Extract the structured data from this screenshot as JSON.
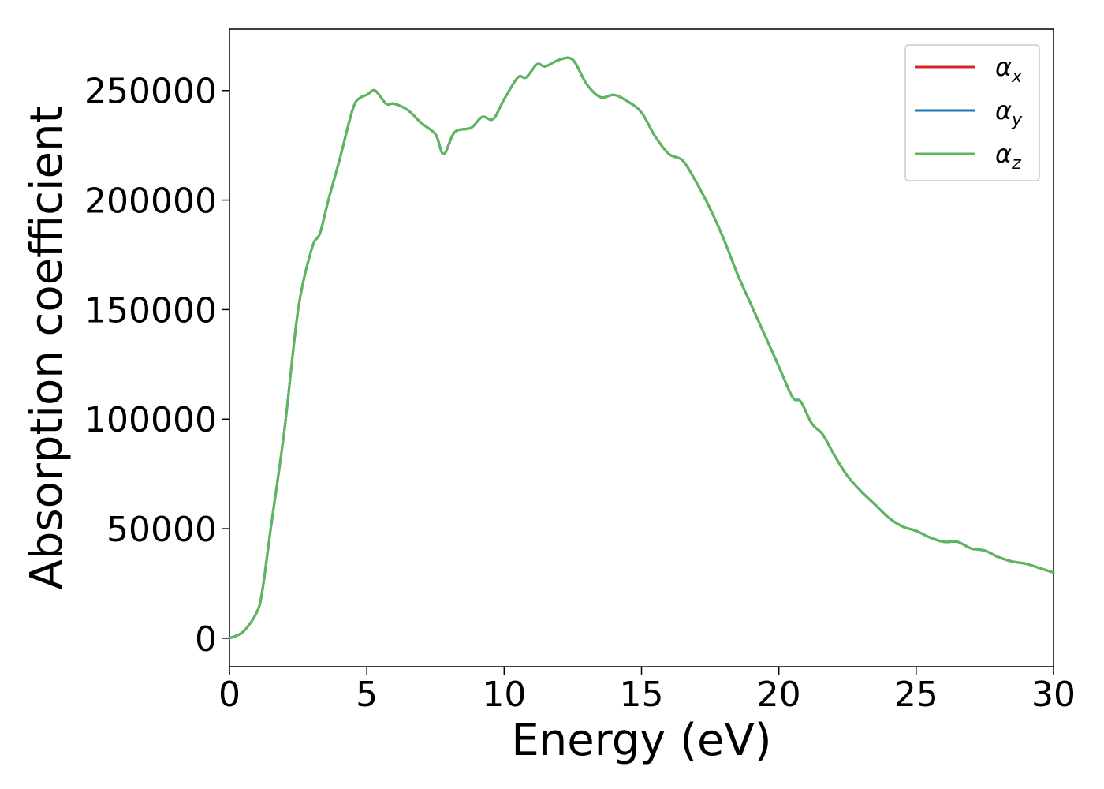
{
  "chart_data": {
    "type": "line",
    "title": "",
    "xlabel": "Energy (eV)",
    "ylabel": "Absorption coefficient",
    "xlim": [
      0,
      30
    ],
    "ylim": [
      -13000,
      278000
    ],
    "xticks": [
      0,
      5,
      10,
      15,
      20,
      25,
      30
    ],
    "yticks": [
      0,
      50000,
      100000,
      150000,
      200000,
      250000
    ],
    "grid": false,
    "legend_position": "top-right",
    "x": [
      0,
      0.5,
      1.0,
      1.2,
      1.5,
      2.0,
      2.5,
      3.0,
      3.3,
      3.6,
      4.0,
      4.5,
      4.8,
      5.0,
      5.3,
      5.7,
      6.0,
      6.5,
      7.0,
      7.5,
      7.8,
      8.2,
      8.8,
      9.2,
      9.6,
      10.0,
      10.5,
      10.8,
      11.2,
      11.5,
      12.0,
      12.5,
      13.0,
      13.5,
      14.0,
      14.5,
      15.0,
      15.5,
      16.0,
      16.5,
      17.0,
      17.5,
      18.0,
      18.5,
      19.0,
      19.5,
      20.0,
      20.5,
      20.8,
      21.2,
      21.6,
      22.0,
      22.5,
      23.0,
      23.5,
      24.0,
      24.5,
      25.0,
      25.5,
      26.0,
      26.5,
      27.0,
      27.5,
      28.0,
      28.5,
      29.0,
      29.5,
      30.0
    ],
    "series": [
      {
        "name": "αx",
        "symbol": "α",
        "subscript": "x",
        "color": "#d62728",
        "values": [
          0,
          3000,
          12000,
          22000,
          50000,
          95000,
          150000,
          178000,
          185000,
          200000,
          218000,
          242000,
          247000,
          248000,
          250000,
          244000,
          244000,
          241000,
          235000,
          230000,
          221000,
          231000,
          233000,
          238000,
          237000,
          246000,
          256000,
          256000,
          262000,
          261000,
          264000,
          264000,
          253000,
          247000,
          248000,
          245000,
          240000,
          229000,
          221000,
          218000,
          208000,
          196000,
          182000,
          166000,
          152000,
          138000,
          124000,
          110000,
          108000,
          98000,
          93000,
          84000,
          74000,
          67000,
          61000,
          55000,
          51000,
          49000,
          46000,
          44000,
          44000,
          41000,
          40000,
          37000,
          35000,
          34000,
          32000,
          30000
        ]
      },
      {
        "name": "αy",
        "symbol": "α",
        "subscript": "y",
        "color": "#1f77b4",
        "values": [
          0,
          3000,
          12000,
          22000,
          50000,
          95000,
          150000,
          178000,
          185000,
          200000,
          218000,
          242000,
          247000,
          248000,
          250000,
          244000,
          244000,
          241000,
          235000,
          230000,
          221000,
          231000,
          233000,
          238000,
          237000,
          246000,
          256000,
          256000,
          262000,
          261000,
          264000,
          264000,
          253000,
          247000,
          248000,
          245000,
          240000,
          229000,
          221000,
          218000,
          208000,
          196000,
          182000,
          166000,
          152000,
          138000,
          124000,
          110000,
          108000,
          98000,
          93000,
          84000,
          74000,
          67000,
          61000,
          55000,
          51000,
          49000,
          46000,
          44000,
          44000,
          41000,
          40000,
          37000,
          35000,
          34000,
          32000,
          30000
        ]
      },
      {
        "name": "αz",
        "symbol": "α",
        "subscript": "z",
        "color": "#5cb85c",
        "values": [
          0,
          3000,
          12000,
          22000,
          50000,
          95000,
          150000,
          178000,
          185000,
          200000,
          218000,
          242000,
          247000,
          248000,
          250000,
          244000,
          244000,
          241000,
          235000,
          230000,
          221000,
          231000,
          233000,
          238000,
          237000,
          246000,
          256000,
          256000,
          262000,
          261000,
          264000,
          264000,
          253000,
          247000,
          248000,
          245000,
          240000,
          229000,
          221000,
          218000,
          208000,
          196000,
          182000,
          166000,
          152000,
          138000,
          124000,
          110000,
          108000,
          98000,
          93000,
          84000,
          74000,
          67000,
          61000,
          55000,
          51000,
          49000,
          46000,
          44000,
          44000,
          41000,
          40000,
          37000,
          35000,
          34000,
          32000,
          30000
        ]
      }
    ]
  }
}
